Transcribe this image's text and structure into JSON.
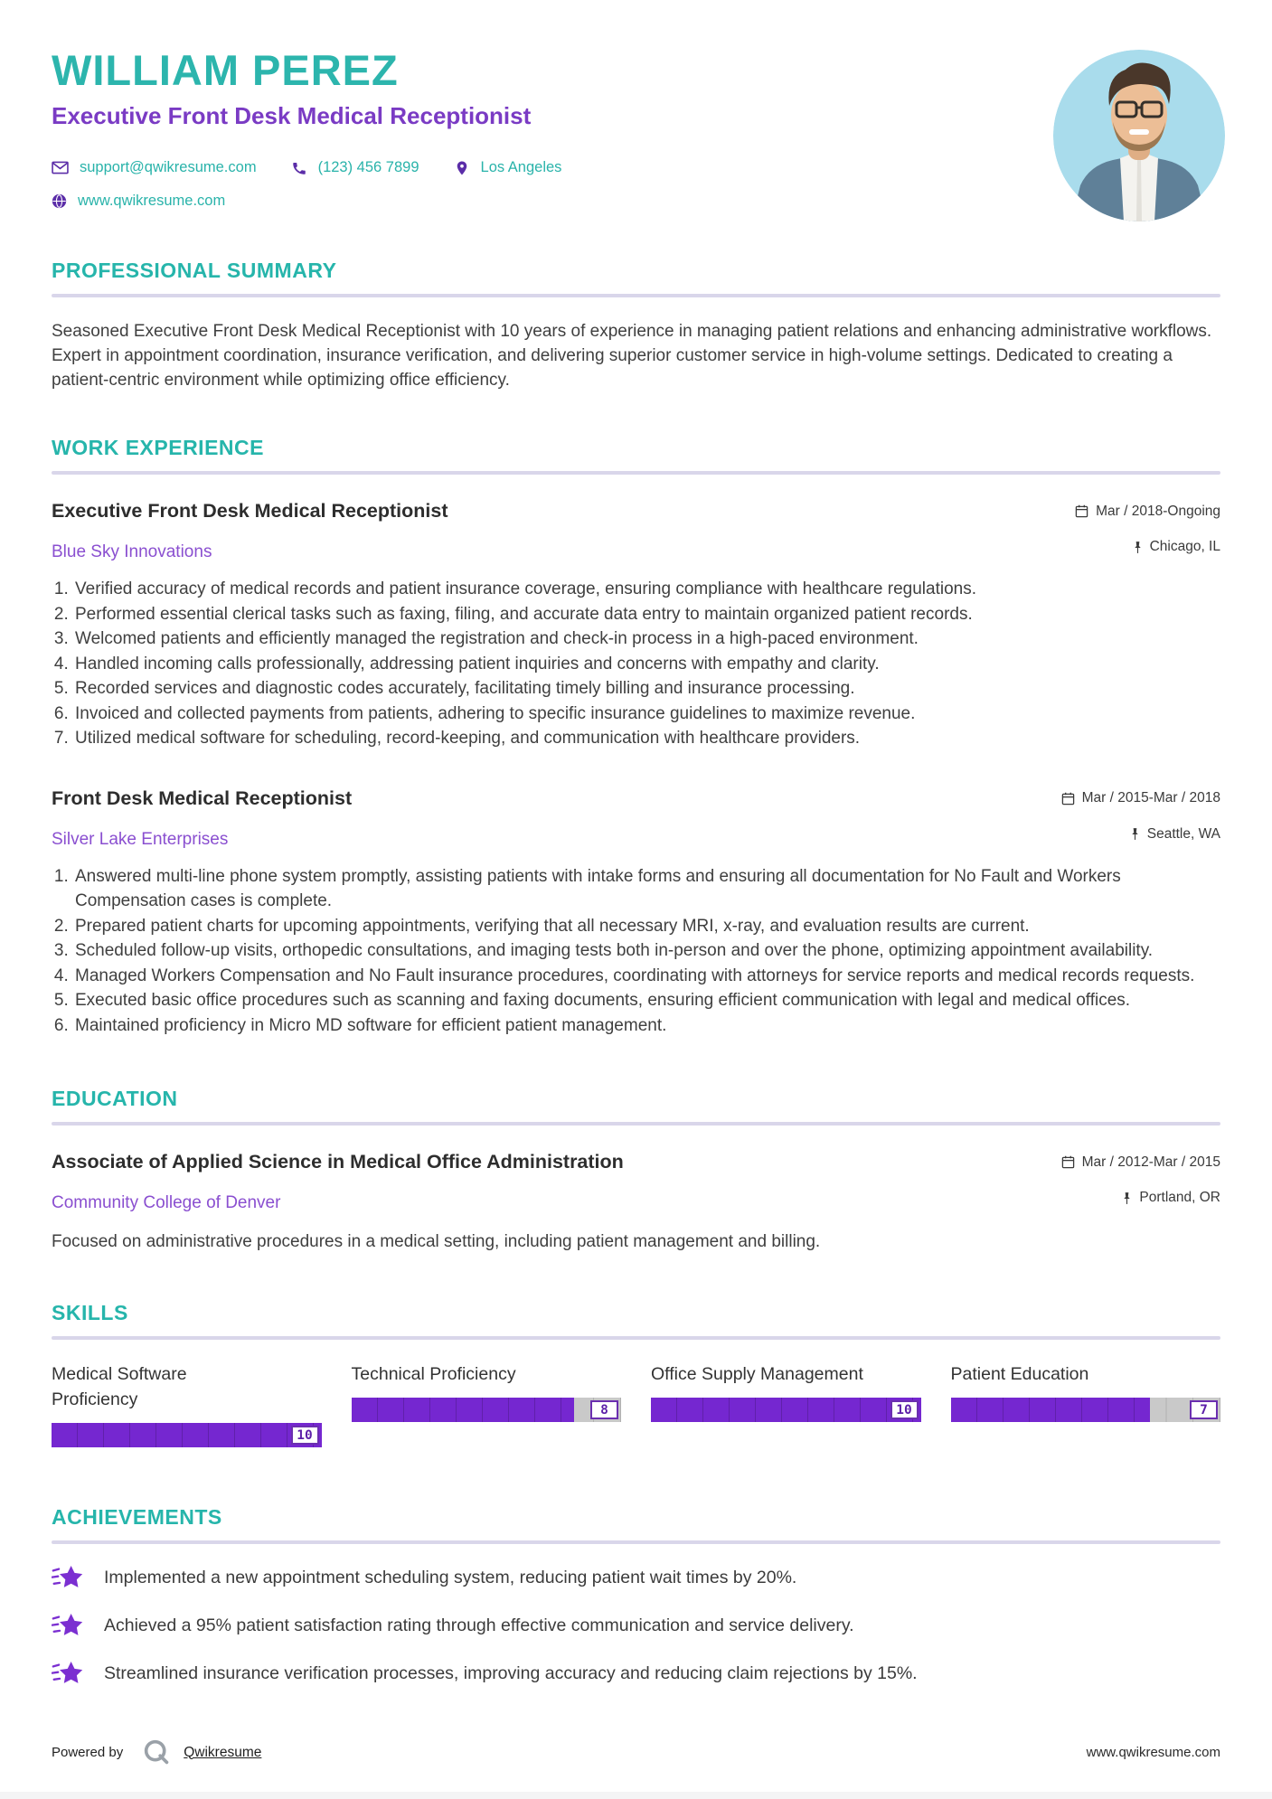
{
  "header": {
    "name": "WILLIAM PEREZ",
    "title": "Executive Front Desk Medical Receptionist",
    "email": "support@qwikresume.com",
    "phone": "(123) 456 7899",
    "location": "Los Angeles",
    "website": "www.qwikresume.com"
  },
  "summary": {
    "heading": "PROFESSIONAL SUMMARY",
    "text": "Seasoned Executive Front Desk Medical Receptionist with 10 years of experience in managing patient relations and enhancing administrative workflows. Expert in appointment coordination, insurance verification, and delivering superior customer service in high-volume settings. Dedicated to creating a patient-centric environment while optimizing office efficiency."
  },
  "experience": {
    "heading": "WORK EXPERIENCE",
    "jobs": [
      {
        "title": "Executive Front Desk Medical Receptionist",
        "company": "Blue Sky Innovations",
        "dates": "Mar / 2018-Ongoing",
        "location": "Chicago, IL",
        "bullets": [
          "Verified accuracy of medical records and patient insurance coverage, ensuring compliance with healthcare regulations.",
          "Performed essential clerical tasks such as faxing, filing, and accurate data entry to maintain organized patient records.",
          "Welcomed patients and efficiently managed the registration and check-in process in a high-paced environment.",
          "Handled incoming calls professionally, addressing patient inquiries and concerns with empathy and clarity.",
          "Recorded services and diagnostic codes accurately, facilitating timely billing and insurance processing.",
          "Invoiced and collected payments from patients, adhering to specific insurance guidelines to maximize revenue.",
          "Utilized medical software for scheduling, record-keeping, and communication with healthcare providers."
        ]
      },
      {
        "title": "Front Desk Medical Receptionist",
        "company": "Silver Lake Enterprises",
        "dates": "Mar / 2015-Mar / 2018",
        "location": "Seattle, WA",
        "bullets": [
          "Answered multi-line phone system promptly, assisting patients with intake forms and ensuring all documentation for No Fault and Workers Compensation cases is complete.",
          "Prepared patient charts for upcoming appointments, verifying that all necessary MRI, x-ray, and evaluation results are current.",
          "Scheduled follow-up visits, orthopedic consultations, and imaging tests both in-person and over the phone, optimizing appointment availability.",
          "Managed Workers Compensation and No Fault insurance procedures, coordinating with attorneys for service reports and medical records requests.",
          "Executed basic office procedures such as scanning and faxing documents, ensuring efficient communication with legal and medical offices.",
          "Maintained proficiency in Micro MD software for efficient patient management."
        ]
      }
    ]
  },
  "education": {
    "heading": "EDUCATION",
    "degree": "Associate of Applied Science in Medical Office Administration",
    "school": "Community College of Denver",
    "dates": "Mar / 2012-Mar / 2015",
    "location": "Portland, OR",
    "description": "Focused on administrative procedures in a medical setting, including patient management and billing."
  },
  "skills": {
    "heading": "SKILLS",
    "max": 10,
    "items": [
      {
        "name": "Medical Software Proficiency",
        "score": 10
      },
      {
        "name": "Technical Proficiency",
        "score": 8
      },
      {
        "name": "Office Supply Management",
        "score": 10
      },
      {
        "name": "Patient Education",
        "score": 7
      }
    ]
  },
  "achievements": {
    "heading": "ACHIEVEMENTS",
    "items": [
      "Implemented a new appointment scheduling system, reducing patient wait times by 20%.",
      "Achieved a 95% patient satisfaction rating through effective communication and service delivery.",
      "Streamlined insurance verification processes, improving accuracy and reducing claim rejections by 15%."
    ]
  },
  "footer": {
    "powered_by": "Powered by",
    "brand": "Qwikresume",
    "website": "www.qwikresume.com"
  },
  "colors": {
    "accent_teal": "#2cb5ad",
    "accent_purple": "#7a3bc4",
    "icon_purple": "#5b2da8",
    "skill_fill": "#7527d0",
    "skill_track": "#c9c9c9",
    "heading_rule": "#d9d6ea",
    "photo_background": "#a9dcec"
  }
}
